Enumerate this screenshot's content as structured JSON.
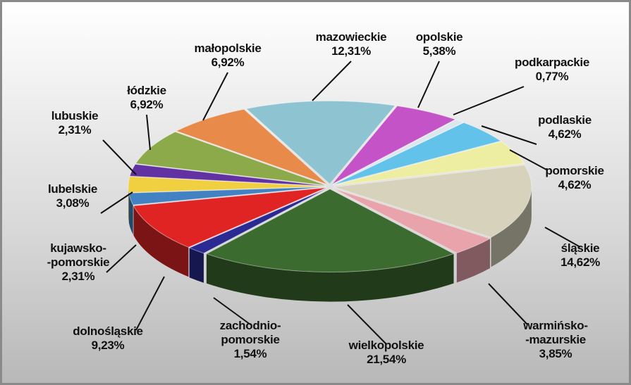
{
  "chart_data": {
    "type": "pie3d",
    "categories": [
      "mazowieckie",
      "opolskie",
      "podkarpackie",
      "podlaskie",
      "pomorskie",
      "śląskie",
      "warmińsko-\n-mazurskie",
      "wielkopolskie",
      "zachodnio-\npomorskie",
      "dolnośląskie",
      "kujawsko-\n-pomorskie",
      "lubelskie",
      "lubuskie",
      "łódzkie",
      "małopolskie"
    ],
    "values": [
      12.31,
      5.38,
      0.77,
      4.62,
      4.62,
      14.62,
      3.85,
      21.54,
      1.54,
      9.23,
      2.31,
      3.08,
      2.31,
      6.92,
      6.92
    ],
    "value_labels": [
      "12,31%",
      "5,38%",
      "0,77%",
      "4,62%",
      "4,62%",
      "14,62%",
      "3,85%",
      "21,54%",
      "1,54%",
      "9,23%",
      "2,31%",
      "3,08%",
      "2,31%",
      "6,92%",
      "6,92%"
    ],
    "colors": [
      "#8ec4d2",
      "#c353c6",
      "#dce6ee",
      "#62c2ea",
      "#eeeea2",
      "#d6d2bc",
      "#e9a3ab",
      "#3c6b30",
      "#2a2a92",
      "#e02424",
      "#4282c2",
      "#f0d040",
      "#6232a2",
      "#8caa4a",
      "#e88a4a"
    ]
  }
}
